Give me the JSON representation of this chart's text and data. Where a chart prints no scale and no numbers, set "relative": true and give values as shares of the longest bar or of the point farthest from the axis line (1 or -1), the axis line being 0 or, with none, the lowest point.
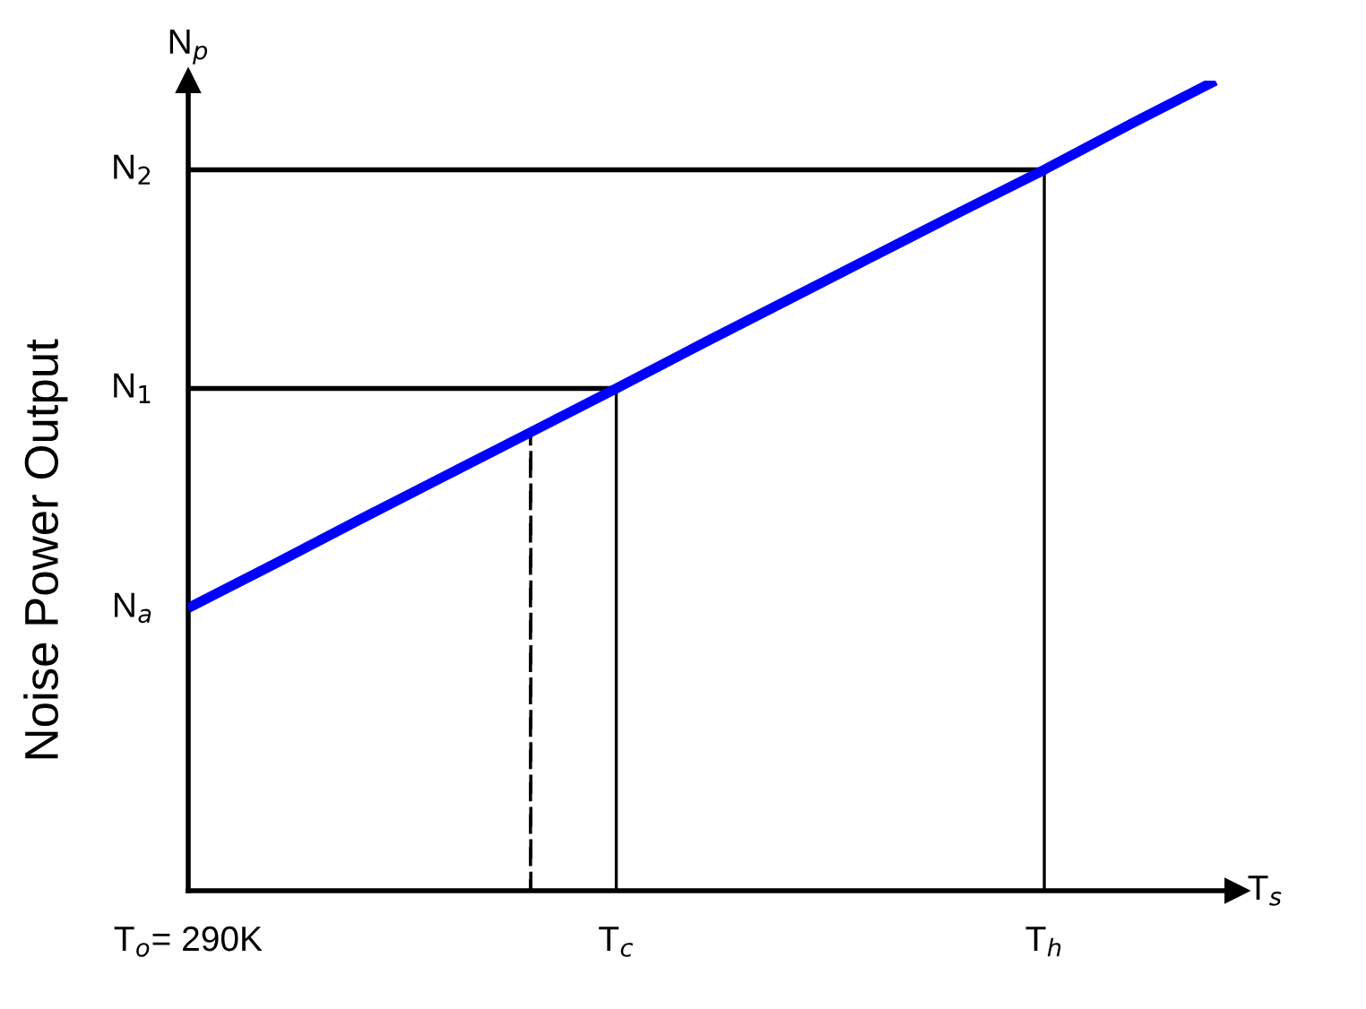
{
  "chart_data": {
    "type": "line",
    "relative": true,
    "ylabel": "Noise Power Output",
    "xlabel": "T$_{s}$",
    "categories": [
      "T$_{o}$= 290K",
      null,
      null,
      null,
      null,
      "T$_{c}$",
      null,
      null,
      null,
      null,
      "T$_{h}$",
      null,
      null
    ],
    "annotations": [
      "N$_{p}$",
      "N$_{a}$",
      "N$_{1}$",
      "N$_{2}$"
    ],
    "grid": false,
    "legend": false,
    "marker": "none",
    "series": [
      {
        "color": "#0000ff",
        "values": [
          0.349,
          0.403,
          0.458,
          0.512,
          0.566,
          0.62,
          0.675,
          0.729,
          0.783,
          0.837,
          0.89,
          0.946,
          1.0
        ],
        "line_style": "solid"
      },
      {
        "color": "#000000",
        "values": [
          0.62,
          0.62,
          0.62,
          0.62,
          0.62,
          0.62,
          null,
          null,
          null,
          null,
          null,
          null,
          null
        ],
        "line_style": "solid"
      },
      {
        "color": "#000000",
        "values": [
          0.89,
          0.89,
          0.89,
          0.89,
          0.89,
          0.89,
          0.89,
          0.89,
          0.89,
          0.89,
          0.89,
          null,
          null
        ],
        "line_style": "solid"
      },
      {
        "type": "bar",
        "color": "#000000",
        "values": [
          null,
          null,
          null,
          null,
          null,
          0.62,
          null,
          null,
          null,
          null,
          0.89,
          null,
          null
        ],
        "line_style": "solid"
      },
      {
        "type": "bar",
        "color": "#000000",
        "values": [
          null,
          null,
          null,
          null,
          0.566,
          null,
          null,
          null,
          null,
          null,
          null,
          null,
          null
        ],
        "line_style": "dashed"
      }
    ]
  }
}
